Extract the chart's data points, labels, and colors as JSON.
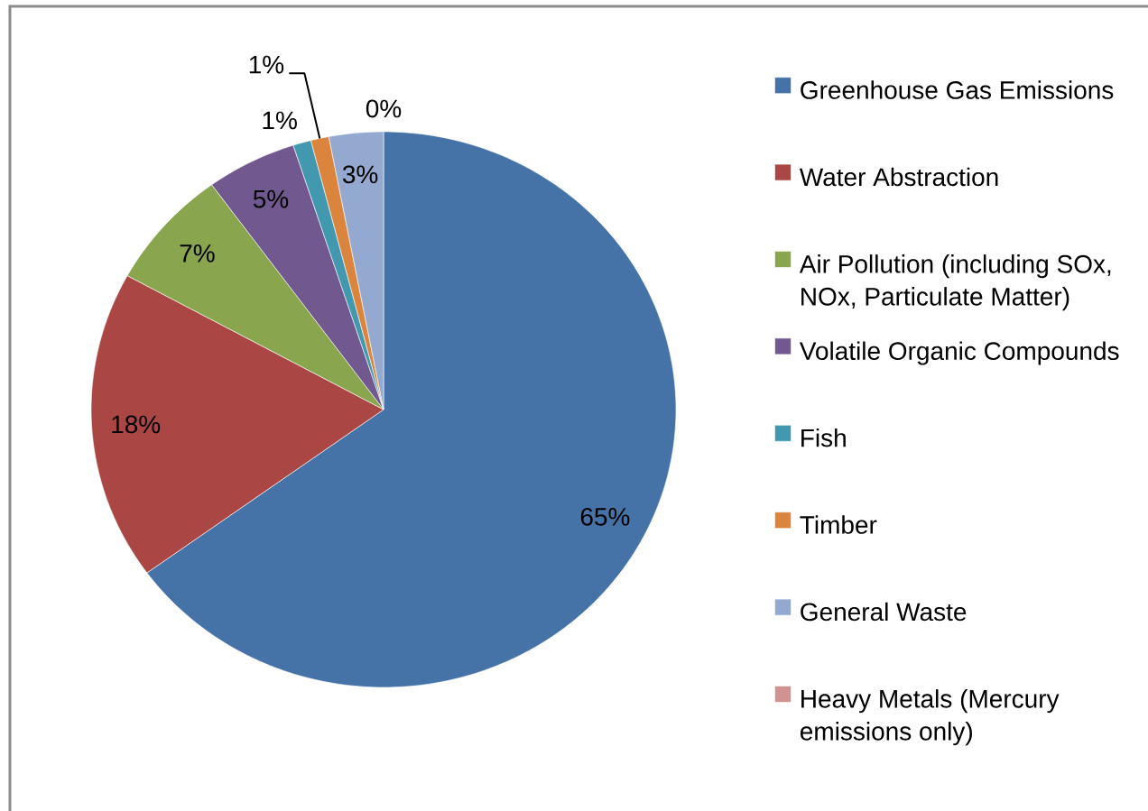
{
  "chart_data": {
    "type": "pie",
    "categories": [
      "Greenhouse Gas Emissions",
      "Water Abstraction",
      "Air Pollution (including SOx, NOx, Particulate Matter)",
      "Volatile Organic Compounds",
      "Fish",
      "Timber",
      "General Waste",
      "Heavy Metals (Mercury emissions only)"
    ],
    "values": [
      65,
      18,
      7,
      5,
      1,
      1,
      3,
      0
    ],
    "colors": [
      "#4572a7",
      "#aa4643",
      "#89a54e",
      "#71588f",
      "#4198af",
      "#db843d",
      "#93a9cf",
      "#d19392"
    ],
    "value_labels": [
      "65%",
      "18%",
      "7%",
      "5%",
      "1%",
      "1%",
      "3%",
      "0%"
    ],
    "legend": "right"
  }
}
